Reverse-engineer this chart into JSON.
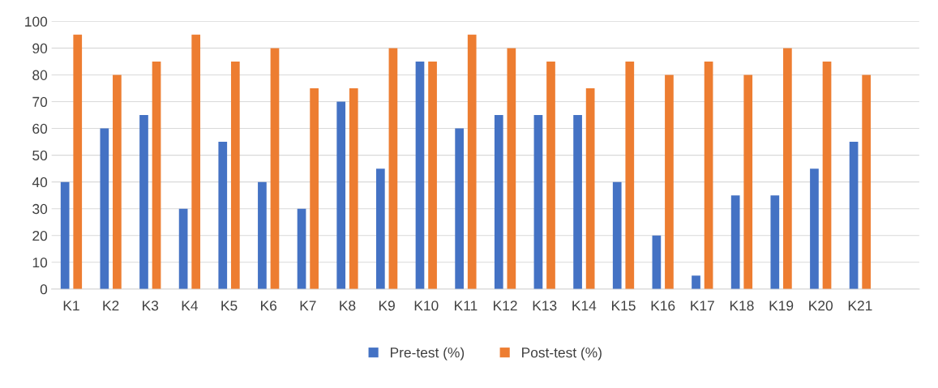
{
  "chart_data": {
    "type": "bar",
    "categories": [
      "K1",
      "K2",
      "K3",
      "K4",
      "K5",
      "K6",
      "K7",
      "K8",
      "K9",
      "K10",
      "K11",
      "K12",
      "K13",
      "K14",
      "K15",
      "K16",
      "K17",
      "K18",
      "K19",
      "K20",
      "K21",
      null
    ],
    "series": [
      {
        "name": "Pre-test (%)",
        "color": "#4472c4",
        "values": [
          40,
          60,
          65,
          30,
          55,
          40,
          30,
          70,
          45,
          85,
          60,
          65,
          65,
          65,
          40,
          20,
          5,
          35,
          35,
          45,
          55,
          null
        ]
      },
      {
        "name": "Post-test (%)",
        "color": "#ed7d31",
        "values": [
          95,
          80,
          85,
          95,
          85,
          90,
          75,
          75,
          90,
          85,
          95,
          90,
          85,
          75,
          85,
          80,
          85,
          80,
          90,
          85,
          80,
          null
        ]
      }
    ],
    "ylim": [
      0,
      100
    ],
    "yticks": [
      0,
      10,
      20,
      30,
      40,
      50,
      60,
      70,
      80,
      90,
      100
    ],
    "grid": "y",
    "legend": "bottom"
  }
}
